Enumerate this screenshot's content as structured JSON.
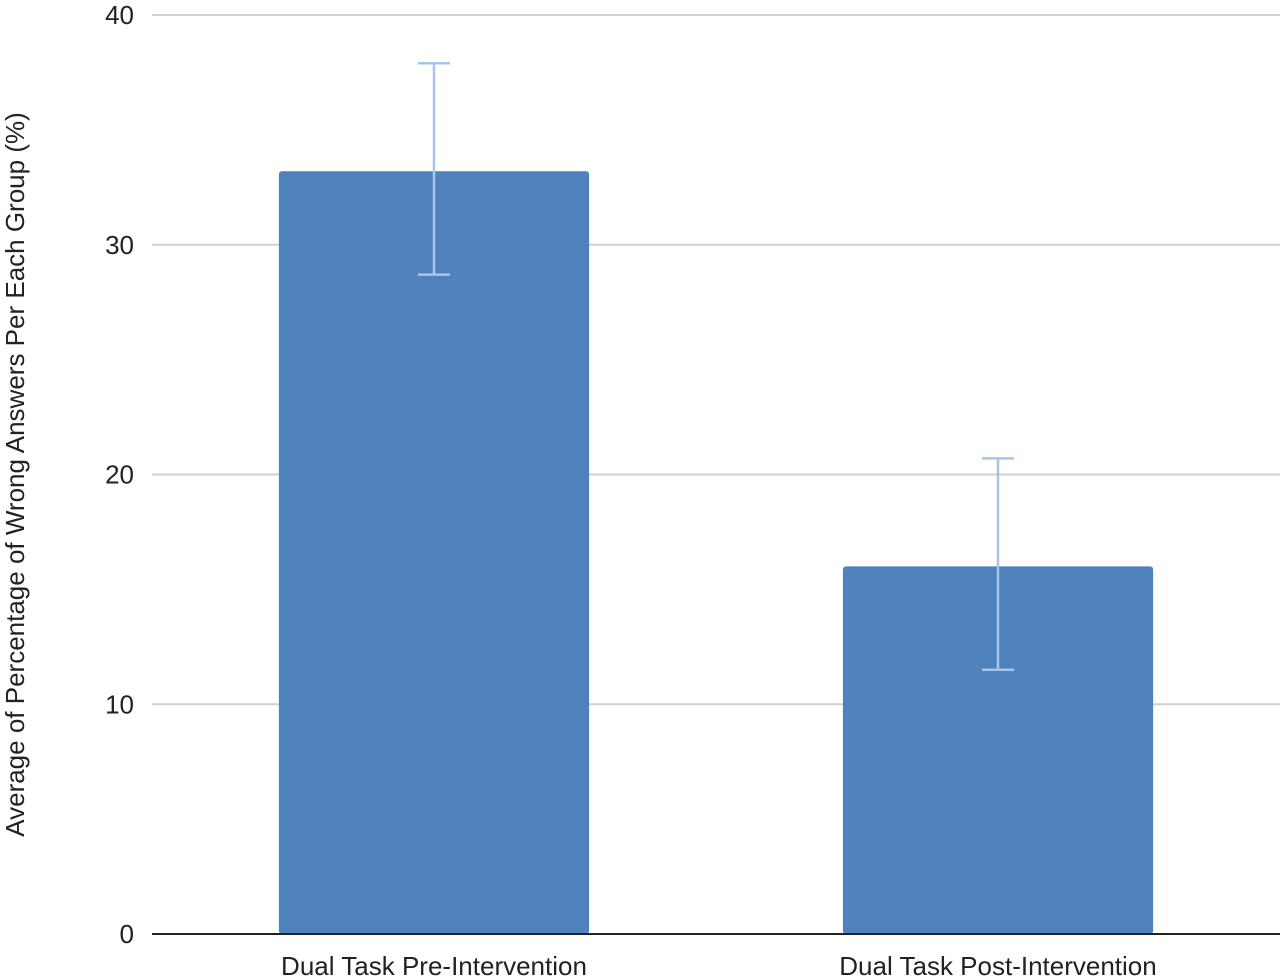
{
  "chart_data": {
    "type": "bar",
    "title": "",
    "xlabel": "",
    "ylabel": "Average of Percentage of Wrong Answers Per Each Group (%)",
    "categories": [
      "Dual Task Pre-Intervention",
      "Dual Task Post-Intervention"
    ],
    "series": [
      {
        "values": [
          33.2,
          16.0
        ],
        "error_low": [
          28.7,
          11.5
        ],
        "error_high": [
          37.9,
          20.7
        ]
      }
    ],
    "ylim": [
      0,
      40
    ],
    "yticks": [
      "0",
      "10",
      "20",
      "30",
      "40"
    ],
    "grid": true,
    "legend": "none",
    "colors": {
      "bar": "#4f81bd",
      "error_bar": "#a9c4e8",
      "grid": "#d0d0d0",
      "axis": "#222222"
    }
  }
}
